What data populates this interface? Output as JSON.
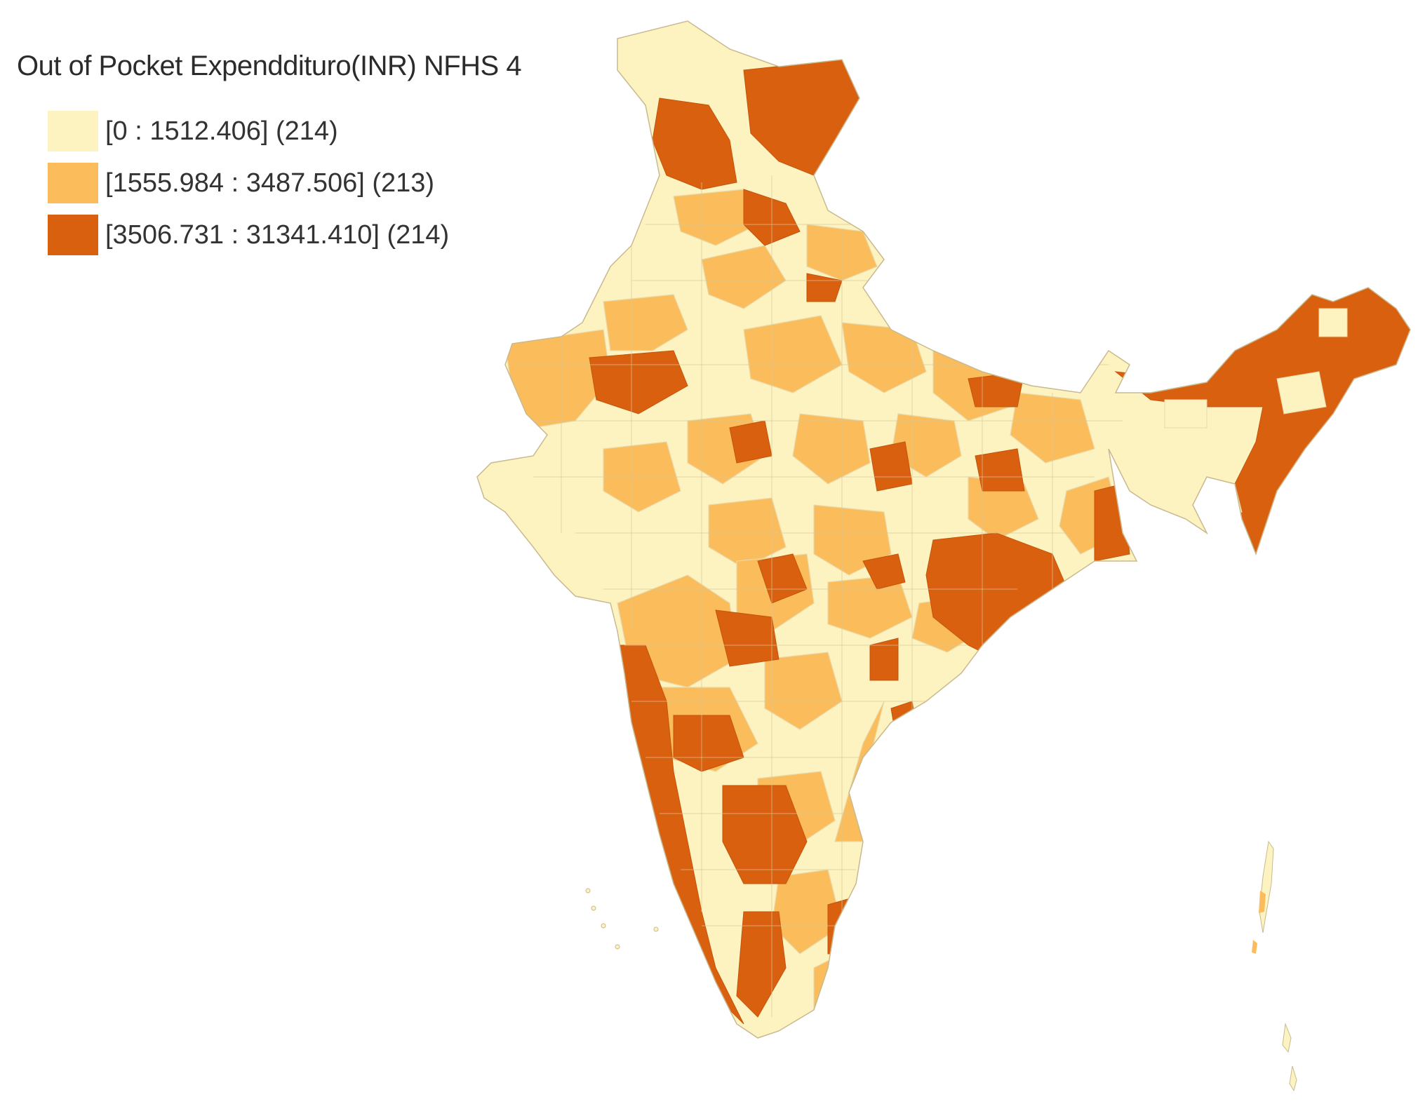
{
  "legend": {
    "title": "Out of Pocket Expenddituro(INR) NFHS 4",
    "classes": [
      {
        "label": "[0 : 1512.406] (214)",
        "color": "#fdf3c0"
      },
      {
        "label": "[1555.984 : 3487.506] (213)",
        "color": "#fbbc5c"
      },
      {
        "label": "[3506.731 : 31341.410] (214)",
        "color": "#d9600f"
      }
    ]
  },
  "map": {
    "region": "India districts",
    "border_color": "#c9b98f"
  }
}
